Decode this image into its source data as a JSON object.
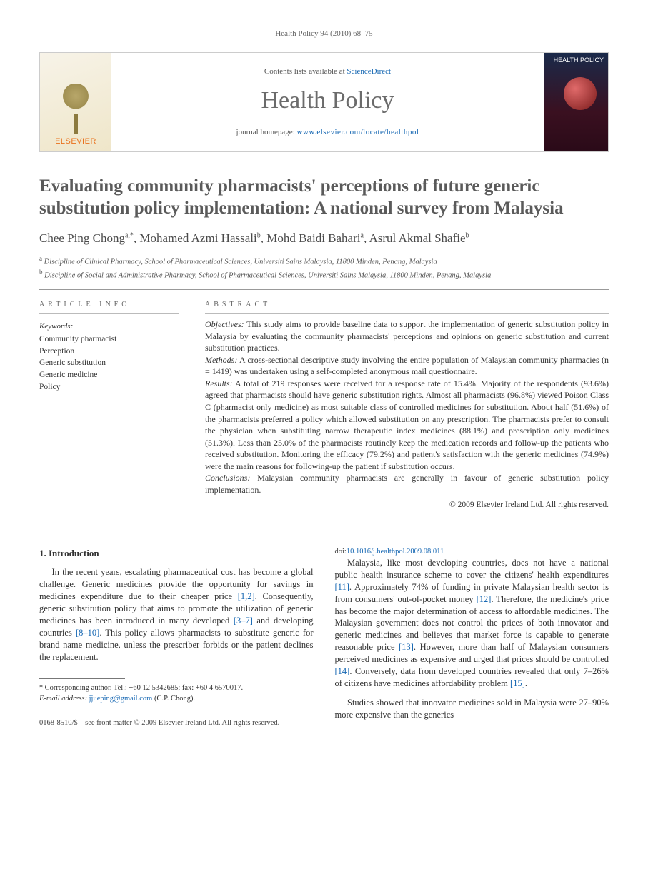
{
  "running_head": "Health Policy 94 (2010) 68–75",
  "masthead": {
    "brand": "ELSEVIER",
    "contents_prefix": "Contents lists available at ",
    "contents_link": "ScienceDirect",
    "journal": "Health Policy",
    "homepage_prefix": "journal homepage: ",
    "homepage_link": "www.elsevier.com/locate/healthpol",
    "cover_title": "HEALTH POLICY"
  },
  "title": "Evaluating community pharmacists' perceptions of future generic substitution policy implementation: A national survey from Malaysia",
  "authors_html": "Chee Ping Chong<sup>a,*</sup>, Mohamed Azmi Hassali<sup>b</sup>, Mohd Baidi Bahari<sup>a</sup>, Asrul Akmal Shafie<sup>b</sup>",
  "affiliations": [
    {
      "sup": "a",
      "text": "Discipline of Clinical Pharmacy, School of Pharmaceutical Sciences, Universiti Sains Malaysia, 11800 Minden, Penang, Malaysia"
    },
    {
      "sup": "b",
      "text": "Discipline of Social and Administrative Pharmacy, School of Pharmaceutical Sciences, Universiti Sains Malaysia, 11800 Minden, Penang, Malaysia"
    }
  ],
  "info_head": "ARTICLE INFO",
  "abstract_head": "ABSTRACT",
  "keywords_label": "Keywords:",
  "keywords": [
    "Community pharmacist",
    "Perception",
    "Generic substitution",
    "Generic medicine",
    "Policy"
  ],
  "abstract": {
    "objectives_lead": "Objectives:",
    "objectives": " This study aims to provide baseline data to support the implementation of generic substitution policy in Malaysia by evaluating the community pharmacists' perceptions and opinions on generic substitution and current substitution practices.",
    "methods_lead": "Methods:",
    "methods": " A cross-sectional descriptive study involving the entire population of Malaysian community pharmacies (n = 1419) was undertaken using a self-completed anonymous mail questionnaire.",
    "results_lead": "Results:",
    "results": " A total of 219 responses were received for a response rate of 15.4%. Majority of the respondents (93.6%) agreed that pharmacists should have generic substitution rights. Almost all pharmacists (96.8%) viewed Poison Class C (pharmacist only medicine) as most suitable class of controlled medicines for substitution. About half (51.6%) of the pharmacists preferred a policy which allowed substitution on any prescription. The pharmacists prefer to consult the physician when substituting narrow therapeutic index medicines (88.1%) and prescription only medicines (51.3%). Less than 25.0% of the pharmacists routinely keep the medication records and follow-up the patients who received substitution. Monitoring the efficacy (79.2%) and patient's satisfaction with the generic medicines (74.9%) were the main reasons for following-up the patient if substitution occurs.",
    "conclusions_lead": "Conclusions:",
    "conclusions": " Malaysian community pharmacists are generally in favour of generic substitution policy implementation.",
    "copyright": "© 2009 Elsevier Ireland Ltd. All rights reserved."
  },
  "section1_head": "1.  Introduction",
  "para1_pre": "In the recent years, escalating pharmaceutical cost has become a global challenge. Generic medicines provide the opportunity for savings in medicines expenditure due to their cheaper price ",
  "ref12": "[1,2]",
  "para1_mid1": ". Consequently, generic substitution policy that aims to promote the utilization of generic medicines has been introduced in many developed ",
  "ref37": "[3–7]",
  "para1_mid2": " and developing countries ",
  "ref810": "[8–10]",
  "para1_post": ". This policy allows pharmacists to substitute generic for brand name medicine, unless the prescriber forbids or the patient declines the replacement.",
  "para2_pre": "Malaysia, like most developing countries, does not have a national public health insurance scheme to cover the citizens' health expenditures ",
  "ref11": "[11]",
  "para2_mid1": ". Approximately 74% of funding in private Malaysian health sector is from consumers' out-of-pocket money ",
  "ref12b": "[12]",
  "para2_mid2": ". Therefore, the medicine's price has become the major determination of access to affordable medicines. The Malaysian government does not control the prices of both innovator and generic medicines and believes that market force is capable to generate reasonable price ",
  "ref13": "[13]",
  "para2_mid3": ". However, more than half of Malaysian consumers perceived medicines as expensive and urged that prices should be controlled ",
  "ref14": "[14]",
  "para2_mid4": ". Conversely, data from developed countries revealed that only 7–26% of citizens have medicines affordability problem ",
  "ref15": "[15]",
  "para2_post": ".",
  "para3": "Studies showed that innovator medicines sold in Malaysia were 27–90% more expensive than the generics",
  "footnote": {
    "corr_label": "Corresponding author. Tel.: +60 12 5342685; fax: +60 4 6570017.",
    "email_label": "E-mail address:",
    "email": "jjueping@gmail.com",
    "email_author": " (C.P. Chong)."
  },
  "footer": {
    "issn_line": "0168-8510/$ – see front matter © 2009 Elsevier Ireland Ltd. All rights reserved.",
    "doi_prefix": "doi:",
    "doi": "10.1016/j.healthpol.2009.08.011"
  },
  "colors": {
    "link": "#1768b3",
    "brand": "#e9711c",
    "rule": "#999999",
    "text_grey": "#5a5a5a"
  }
}
